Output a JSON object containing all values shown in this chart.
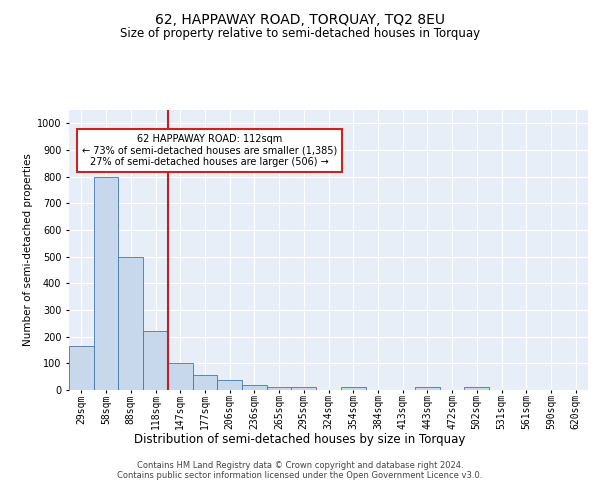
{
  "title": "62, HAPPAWAY ROAD, TORQUAY, TQ2 8EU",
  "subtitle": "Size of property relative to semi-detached houses in Torquay",
  "xlabel": "Distribution of semi-detached houses by size in Torquay",
  "ylabel": "Number of semi-detached properties",
  "footer_line1": "Contains HM Land Registry data © Crown copyright and database right 2024.",
  "footer_line2": "Contains public sector information licensed under the Open Government Licence v3.0.",
  "annotation_title": "62 HAPPAWAY ROAD: 112sqm",
  "annotation_line1": "← 73% of semi-detached houses are smaller (1,385)",
  "annotation_line2": "27% of semi-detached houses are larger (506) →",
  "categories": [
    "29sqm",
    "58sqm",
    "88sqm",
    "118sqm",
    "147sqm",
    "177sqm",
    "206sqm",
    "236sqm",
    "265sqm",
    "295sqm",
    "324sqm",
    "354sqm",
    "384sqm",
    "413sqm",
    "443sqm",
    "472sqm",
    "502sqm",
    "531sqm",
    "561sqm",
    "590sqm",
    "620sqm"
  ],
  "values": [
    165,
    800,
    500,
    220,
    100,
    55,
    37,
    18,
    10,
    10,
    0,
    10,
    0,
    0,
    10,
    0,
    10,
    0,
    0,
    0,
    0
  ],
  "bar_color": "#c8d8ec",
  "bar_edge_color": "#4477aa",
  "vline_color": "#bb2222",
  "vline_index": 3.5,
  "annotation_box_edge": "#cc2222",
  "plot_bg_color": "#e8eef8",
  "ylim": [
    0,
    1050
  ],
  "yticks": [
    0,
    100,
    200,
    300,
    400,
    500,
    600,
    700,
    800,
    900,
    1000
  ],
  "title_fontsize": 10,
  "subtitle_fontsize": 8.5,
  "ylabel_fontsize": 7.5,
  "xlabel_fontsize": 8.5,
  "tick_fontsize": 7,
  "annotation_fontsize": 7,
  "footer_fontsize": 6
}
